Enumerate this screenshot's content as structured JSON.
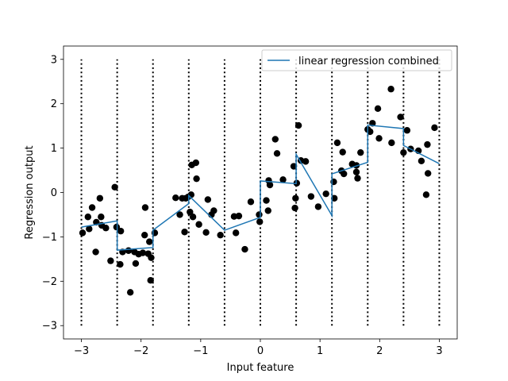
{
  "chart_data": {
    "type": "scatter",
    "xlabel": "Input feature",
    "ylabel": "Regression output",
    "xlim": [
      -3.3,
      3.3
    ],
    "ylim": [
      -3.3,
      3.3
    ],
    "xticks": [
      -3,
      -2,
      -1,
      0,
      1,
      2,
      3
    ],
    "yticks": [
      -3,
      -2,
      -1,
      0,
      1,
      2,
      3
    ],
    "xtick_labels": [
      "−3",
      "−2",
      "−1",
      "0",
      "1",
      "2",
      "3"
    ],
    "ytick_labels": [
      "−3",
      "−2",
      "−1",
      "0",
      "1",
      "2",
      "3"
    ],
    "grid": false,
    "legend_position": "top-right",
    "bin_edges": [
      -3.0,
      -2.4,
      -1.8,
      -1.2,
      -0.6,
      0.0,
      0.6,
      1.2,
      1.8,
      2.4,
      3.0
    ],
    "bin_line_range": [
      -3,
      3
    ],
    "series": [
      {
        "name": "linear regression combined",
        "kind": "line",
        "color": "#1f77b4",
        "points": [
          [
            -3.0,
            -0.78
          ],
          [
            -2.4,
            -0.64
          ],
          [
            -2.4,
            -1.3
          ],
          [
            -1.8,
            -1.24
          ],
          [
            -1.8,
            -0.85
          ],
          [
            -1.2,
            -0.25
          ],
          [
            -1.2,
            -0.07
          ],
          [
            -0.6,
            -0.85
          ],
          [
            -0.6,
            -0.85
          ],
          [
            0.0,
            -0.56
          ],
          [
            0.0,
            0.26
          ],
          [
            0.6,
            0.2
          ],
          [
            0.6,
            0.86
          ],
          [
            1.2,
            -0.52
          ],
          [
            1.2,
            0.42
          ],
          [
            1.8,
            0.68
          ],
          [
            1.8,
            1.52
          ],
          [
            2.4,
            1.44
          ],
          [
            2.4,
            1.06
          ],
          [
            3.0,
            0.65
          ]
        ]
      },
      {
        "kind": "scatter",
        "color": "#000000",
        "points": [
          [
            -2.98,
            -0.91
          ],
          [
            -2.89,
            -0.55
          ],
          [
            -2.87,
            -0.82
          ],
          [
            -2.82,
            -0.34
          ],
          [
            -2.76,
            -1.34
          ],
          [
            -2.75,
            -0.67
          ],
          [
            -2.69,
            -0.13
          ],
          [
            -2.67,
            -0.55
          ],
          [
            -2.66,
            -0.74
          ],
          [
            -2.59,
            -0.8
          ],
          [
            -2.51,
            -1.54
          ],
          [
            -2.44,
            0.12
          ],
          [
            -2.41,
            -0.78
          ],
          [
            -2.35,
            -1.62
          ],
          [
            -2.34,
            -0.87
          ],
          [
            -2.31,
            -1.34
          ],
          [
            -2.21,
            -1.31
          ],
          [
            -2.18,
            -2.25
          ],
          [
            -2.11,
            -1.34
          ],
          [
            -2.09,
            -1.6
          ],
          [
            -2.04,
            -1.39
          ],
          [
            -1.97,
            -1.36
          ],
          [
            -1.94,
            -0.96
          ],
          [
            -1.93,
            -0.34
          ],
          [
            -1.88,
            -1.38
          ],
          [
            -1.86,
            -1.11
          ],
          [
            -1.84,
            -1.98
          ],
          [
            -1.83,
            -1.47
          ],
          [
            -1.77,
            -0.91
          ],
          [
            -1.42,
            -0.12
          ],
          [
            -1.35,
            -0.5
          ],
          [
            -1.31,
            -0.13
          ],
          [
            -1.27,
            -0.89
          ],
          [
            -1.25,
            -0.13
          ],
          [
            -1.21,
            -0.1
          ],
          [
            -1.18,
            -0.44
          ],
          [
            -1.16,
            -0.05
          ],
          [
            -1.15,
            0.62
          ],
          [
            -1.13,
            -0.55
          ],
          [
            -1.08,
            0.67
          ],
          [
            -1.07,
            0.31
          ],
          [
            -1.03,
            -0.72
          ],
          [
            -0.91,
            -0.9
          ],
          [
            -0.88,
            -0.16
          ],
          [
            -0.82,
            -0.5
          ],
          [
            -0.78,
            -0.41
          ],
          [
            -0.67,
            -0.96
          ],
          [
            -0.44,
            -0.54
          ],
          [
            -0.41,
            -0.91
          ],
          [
            -0.36,
            -0.53
          ],
          [
            -0.26,
            -1.28
          ],
          [
            -0.16,
            -0.21
          ],
          [
            -0.02,
            -0.5
          ],
          [
            -0.01,
            -0.66
          ],
          [
            0.1,
            -0.18
          ],
          [
            0.13,
            -0.41
          ],
          [
            0.14,
            0.27
          ],
          [
            0.16,
            0.17
          ],
          [
            0.25,
            1.2
          ],
          [
            0.28,
            0.88
          ],
          [
            0.38,
            0.29
          ],
          [
            0.56,
            0.59
          ],
          [
            0.58,
            -0.35
          ],
          [
            0.59,
            -0.13
          ],
          [
            0.61,
            0.21
          ],
          [
            0.64,
            1.51
          ],
          [
            0.68,
            0.72
          ],
          [
            0.76,
            0.7
          ],
          [
            0.85,
            -0.09
          ],
          [
            0.97,
            -0.32
          ],
          [
            1.1,
            -0.03
          ],
          [
            1.23,
            0.24
          ],
          [
            1.24,
            -0.13
          ],
          [
            1.29,
            1.12
          ],
          [
            1.36,
            0.49
          ],
          [
            1.38,
            0.91
          ],
          [
            1.4,
            0.42
          ],
          [
            1.54,
            0.64
          ],
          [
            1.61,
            0.61
          ],
          [
            1.61,
            0.46
          ],
          [
            1.63,
            0.32
          ],
          [
            1.68,
            0.9
          ],
          [
            1.8,
            1.42
          ],
          [
            1.84,
            1.37
          ],
          [
            1.88,
            1.56
          ],
          [
            1.97,
            1.89
          ],
          [
            1.99,
            1.22
          ],
          [
            2.19,
            2.33
          ],
          [
            2.2,
            1.12
          ],
          [
            2.35,
            1.7
          ],
          [
            2.4,
            0.9
          ],
          [
            2.46,
            1.4
          ],
          [
            2.52,
            0.98
          ],
          [
            2.65,
            0.94
          ],
          [
            2.7,
            0.71
          ],
          [
            2.78,
            -0.05
          ],
          [
            2.8,
            1.08
          ],
          [
            2.81,
            0.43
          ],
          [
            2.92,
            1.46
          ]
        ]
      }
    ]
  }
}
